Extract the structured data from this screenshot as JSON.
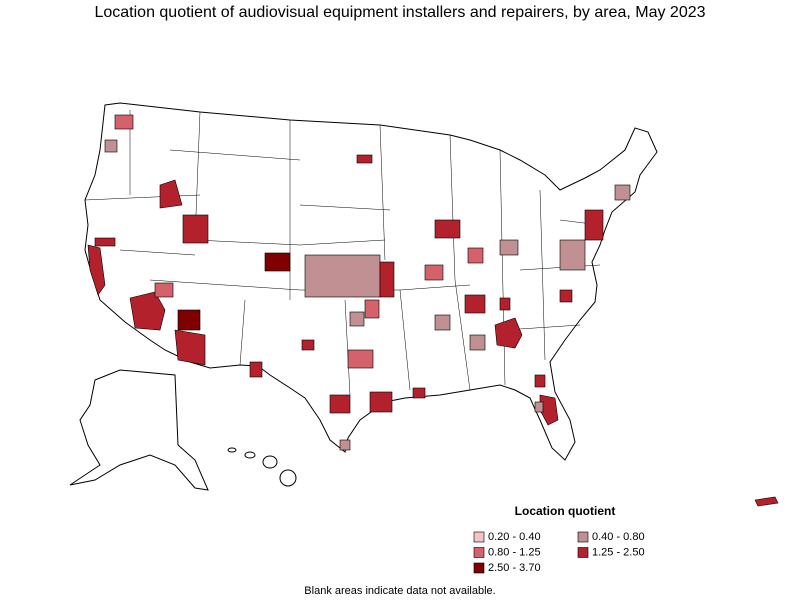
{
  "title": "Location quotient of audiovisual equipment installers and repairers, by area, May 2023",
  "legend": {
    "title": "Location quotient",
    "items": [
      {
        "label": "0.20 - 0.40",
        "color": "#f2c4c4"
      },
      {
        "label": "0.40 - 0.80",
        "color": "#c09092"
      },
      {
        "label": "0.80 - 1.25",
        "color": "#d4626a"
      },
      {
        "label": "1.25 - 2.50",
        "color": "#b3212c"
      },
      {
        "label": "2.50 - 3.70",
        "color": "#7f0000"
      }
    ]
  },
  "note": "Blank areas indicate data not available."
}
